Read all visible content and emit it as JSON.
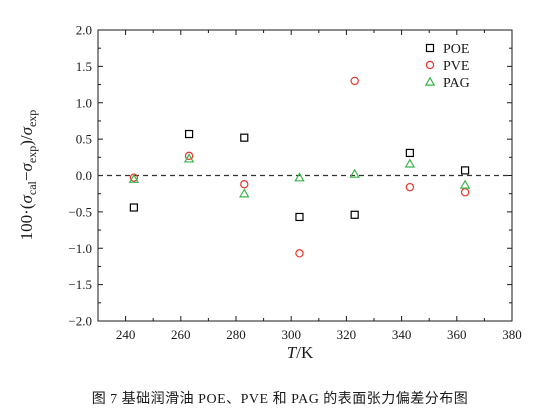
{
  "chart_data": {
    "type": "scatter",
    "xlabel": {
      "var": "T",
      "unit": "/K"
    },
    "ylabel": {
      "prefix": "100·(",
      "cal": "cal",
      "minus": "−",
      "exp": "exp",
      "suffix": ")/"
    },
    "xlim": [
      230,
      380
    ],
    "ylim": [
      -2.0,
      2.0
    ],
    "x_ticks": [
      240,
      260,
      280,
      300,
      320,
      340,
      360,
      380
    ],
    "x_tick_labels": [
      "240",
      "260",
      "280",
      "300",
      "320",
      "340",
      "360",
      "380"
    ],
    "y_ticks": [
      -2.0,
      -1.5,
      -1.0,
      -0.5,
      0.0,
      0.5,
      1.0,
      1.5,
      2.0
    ],
    "y_tick_labels": [
      "−2.0",
      "−1.5",
      "−1.0",
      "−0.5",
      "0.0",
      "0.5",
      "1.0",
      "1.5",
      "2.0"
    ],
    "reference_line": {
      "y": 0.0,
      "style": "dashed"
    },
    "legend_position": "top-right",
    "series": [
      {
        "name": "POE",
        "marker": "square",
        "color": "#000000",
        "x": [
          243,
          263,
          283,
          303,
          323,
          343,
          363
        ],
        "y": [
          -0.44,
          0.57,
          0.52,
          -0.57,
          -0.54,
          0.31,
          0.07
        ]
      },
      {
        "name": "PVE",
        "marker": "circle",
        "color": "#e8342b",
        "x": [
          243,
          263,
          283,
          303,
          323,
          343,
          363
        ],
        "y": [
          -0.03,
          0.27,
          -0.12,
          -1.07,
          1.3,
          -0.16,
          -0.23
        ]
      },
      {
        "name": "PAG",
        "marker": "triangle",
        "color": "#3cb34a",
        "x": [
          243,
          263,
          283,
          303,
          323,
          343,
          363
        ],
        "y": [
          -0.05,
          0.23,
          -0.25,
          -0.03,
          0.02,
          0.16,
          -0.13
        ]
      }
    ]
  },
  "caption": "图 7   基础润滑油 POE、PVE 和 PAG 的表面张力偏差分布图"
}
